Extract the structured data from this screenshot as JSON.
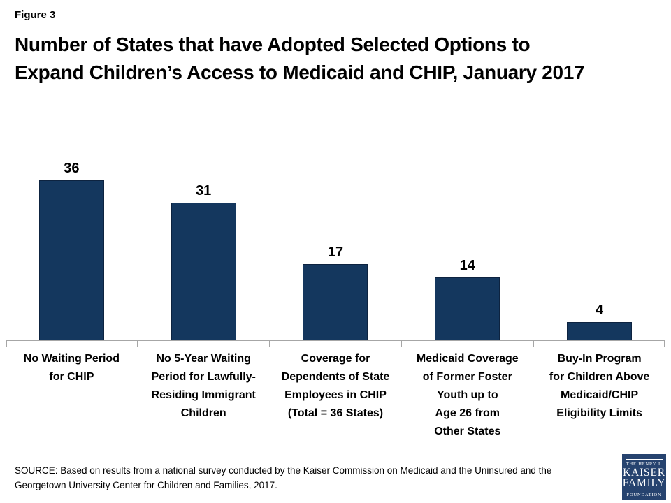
{
  "figure_label": "Figure 3",
  "title": {
    "lines": [
      "Number of States that have Adopted Selected Options to",
      "Expand Children’s Access to Medicaid and CHIP, January 2017"
    ]
  },
  "chart_data": {
    "type": "bar",
    "title": "Number of States that have Adopted Selected Options to Expand Children’s Access to Medicaid and CHIP, January 2017",
    "categories": [
      [
        "No Waiting Period",
        "for CHIP"
      ],
      [
        "No 5-Year Waiting",
        "Period for Lawfully-",
        "Residing Immigrant",
        "Children"
      ],
      [
        "Coverage for",
        "Dependents of State",
        "Employees in CHIP",
        "(Total = 36 States)"
      ],
      [
        "Medicaid Coverage",
        "of Former Foster",
        "Youth up to",
        "Age 26 from",
        "Other States"
      ],
      [
        "Buy-In Program",
        "for Children Above",
        "Medicaid/CHIP",
        "Eligibility Limits"
      ]
    ],
    "values": [
      36,
      31,
      17,
      14,
      4
    ],
    "xlabel": "",
    "ylabel": "",
    "ylim": [
      0,
      42
    ],
    "grid": false,
    "legend": false,
    "value_labels_position": "above bars",
    "bar_color": "#14375E",
    "bar_outline_color": "#0d2340",
    "axis_color": "#A6A6A6"
  },
  "source": {
    "lines": [
      "SOURCE: Based on results from a national survey conducted by the Kaiser Commission on Medicaid and the Uninsured and the",
      "Georgetown University Center for Children and Families, 2017."
    ]
  },
  "logo": {
    "line1": "THE HENRY J.",
    "line2": "KAISER",
    "line3": "FAMILY",
    "line4": "FOUNDATION",
    "bg_color": "#26436F"
  }
}
